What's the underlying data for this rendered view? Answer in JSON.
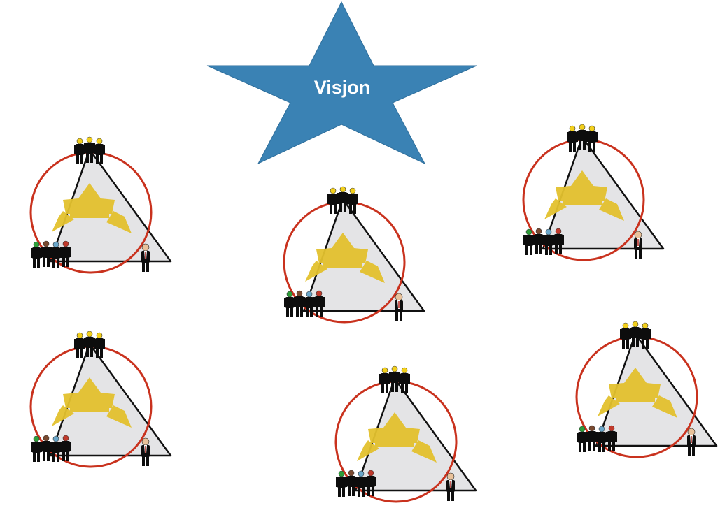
{
  "vision": {
    "label": "Visjon",
    "fill_color": "#3a82b4",
    "stroke_color": "#2f6f9c"
  },
  "groups": [
    {
      "id": "group-1"
    },
    {
      "id": "group-2"
    },
    {
      "id": "group-3"
    },
    {
      "id": "group-4"
    },
    {
      "id": "group-5"
    },
    {
      "id": "group-6"
    }
  ],
  "colors": {
    "triangle_fill": "#e4e4e6",
    "triangle_stroke": "#111111",
    "circle_stroke": "#c9321e",
    "arrows_fill": "#e3c12e",
    "figure_body": "#0d0d0d",
    "head_yellow": "#f2cf1c",
    "head_green": "#2e9e3a",
    "head_brown": "#7a4a30",
    "head_blue": "#6aa6c9",
    "head_red": "#c0392b",
    "head_suit": "#e9c29b"
  },
  "icons": {
    "vision_star": "star-icon",
    "leaders": "leader-figures-icon",
    "team": "team-figures-icon",
    "manager": "manager-figure-icon",
    "arrows": "arrow-cluster-icon"
  }
}
